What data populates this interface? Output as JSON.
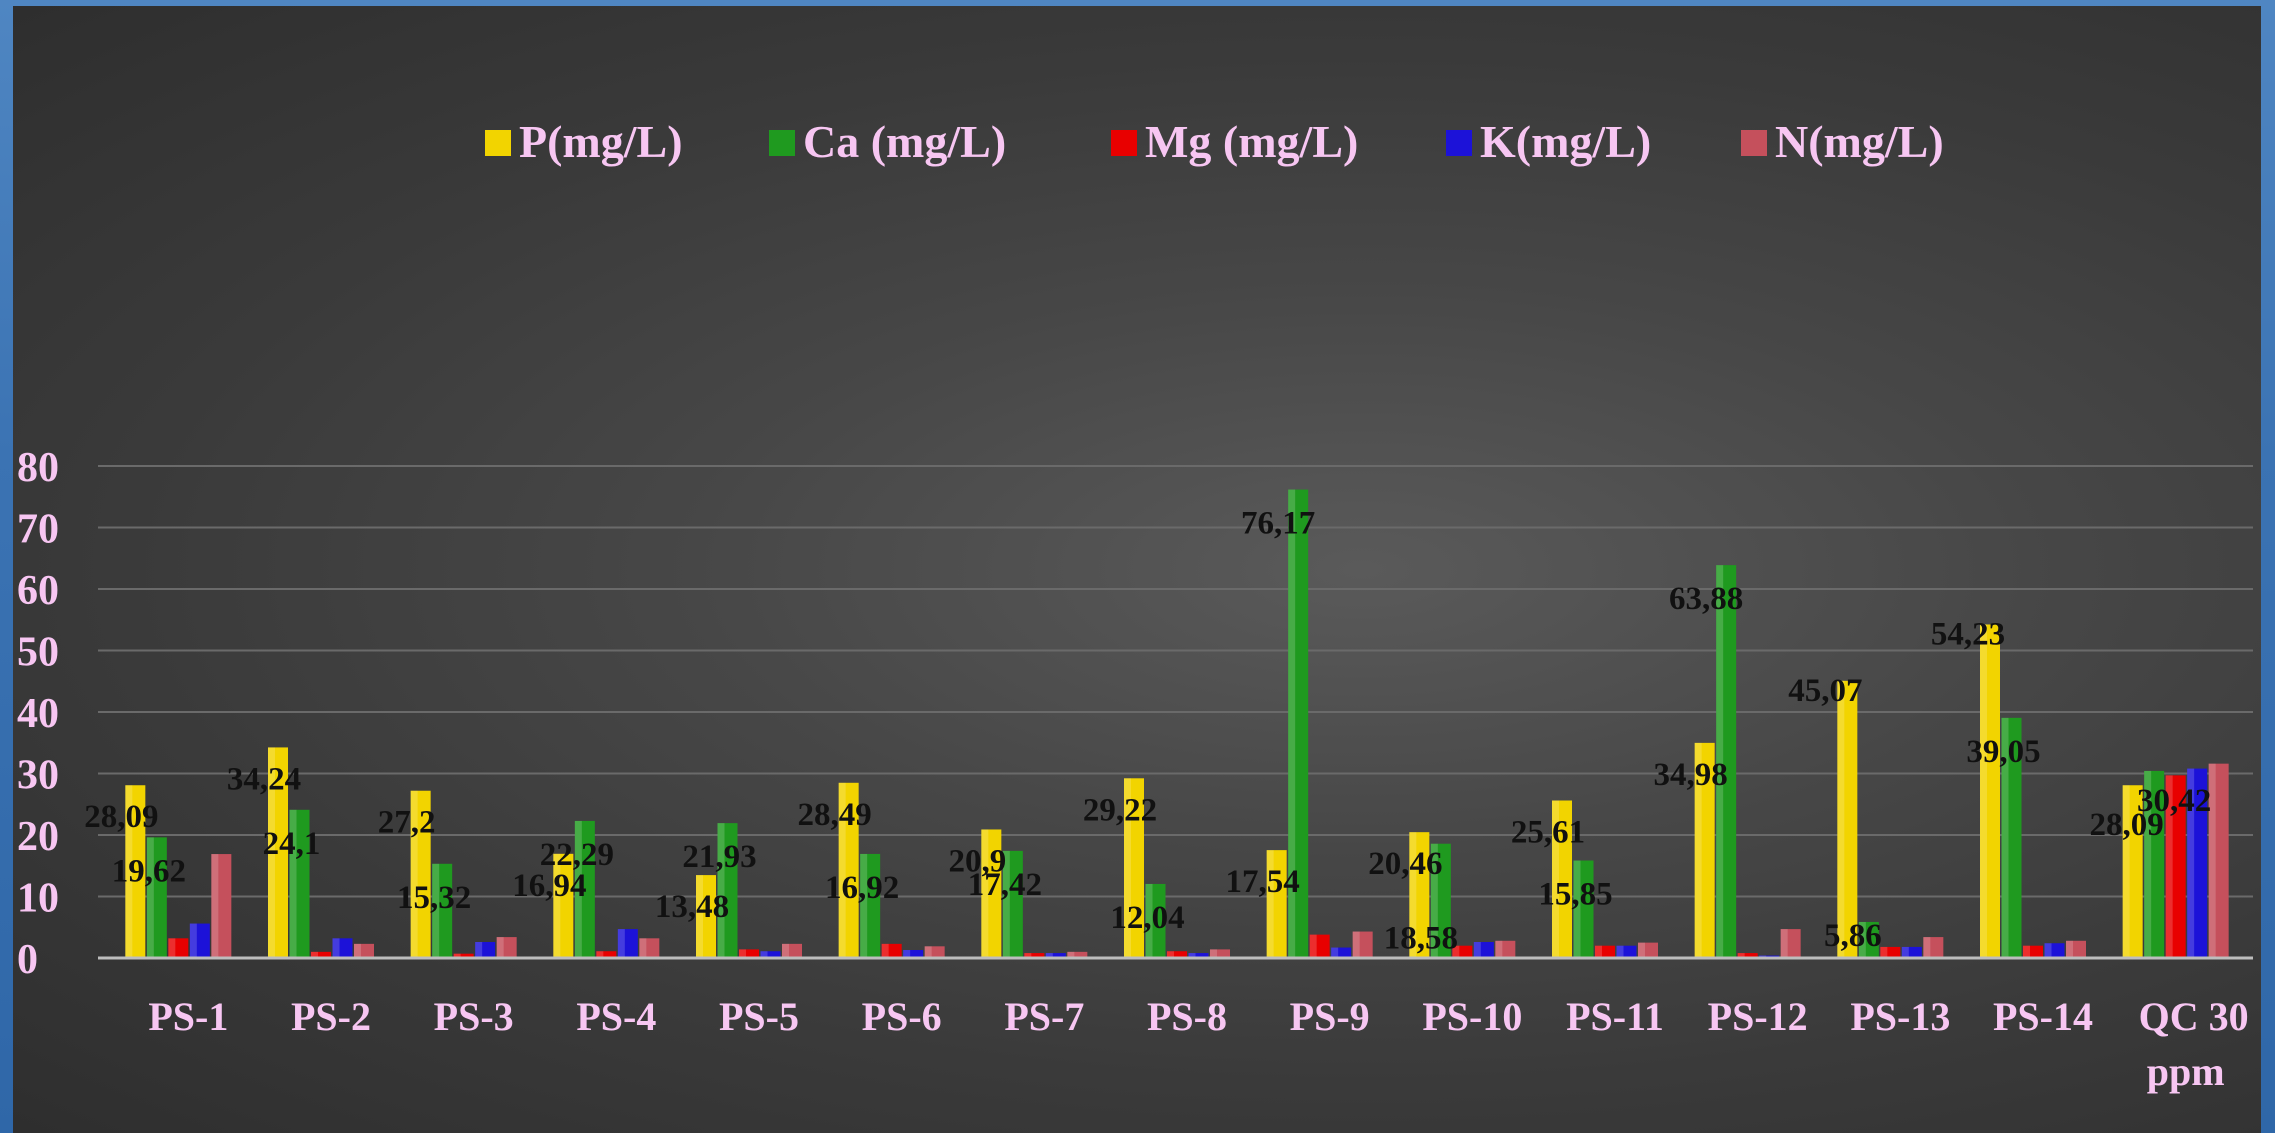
{
  "chart_data": {
    "type": "bar",
    "categories": [
      "PS-1",
      "PS-2",
      "PS-3",
      "PS-4",
      "PS-5",
      "PS-6",
      "PS-7",
      "PS-8",
      "PS-9",
      "PS-10",
      "PS-11",
      "PS-12",
      "PS-13",
      "PS-14",
      "QC 30 ppm"
    ],
    "series": [
      {
        "name": "P(mg/L)",
        "color": "#f2d400",
        "values": [
          28.09,
          34.24,
          27.2,
          16.94,
          13.48,
          28.49,
          20.9,
          29.22,
          17.54,
          20.46,
          25.61,
          34.98,
          45.07,
          54.23,
          28.09
        ]
      },
      {
        "name": "Ca (mg/L)",
        "color": "#1f9a1f",
        "values": [
          19.62,
          24.1,
          15.32,
          22.29,
          21.93,
          16.92,
          17.42,
          12.04,
          76.17,
          18.58,
          15.85,
          63.88,
          5.86,
          39.05,
          30.42
        ]
      },
      {
        "name": "Mg (mg/L)",
        "color": "#e80000",
        "values": [
          3.2,
          1.0,
          0.7,
          1.1,
          1.4,
          2.3,
          0.8,
          1.1,
          3.8,
          2.0,
          2.0,
          0.8,
          1.8,
          2.0,
          29.7
        ]
      },
      {
        "name": "K(mg/L)",
        "color": "#1c12d8",
        "values": [
          5.6,
          3.2,
          2.6,
          4.7,
          1.1,
          1.3,
          0.8,
          0.8,
          1.7,
          2.6,
          2.0,
          0.4,
          1.8,
          2.4,
          30.8
        ]
      },
      {
        "name": "N(mg/L)",
        "color": "#c5505c",
        "values": [
          16.9,
          2.3,
          3.4,
          3.2,
          2.3,
          1.9,
          1.0,
          1.4,
          4.3,
          2.8,
          2.5,
          4.7,
          3.4,
          2.8,
          31.6
        ]
      }
    ],
    "data_labels": [
      {
        "series": 0,
        "category": 0,
        "text": "28,09"
      },
      {
        "series": 1,
        "category": 0,
        "text": "19,62"
      },
      {
        "series": 0,
        "category": 1,
        "text": "34,24"
      },
      {
        "series": 1,
        "category": 1,
        "text": "24,1"
      },
      {
        "series": 0,
        "category": 2,
        "text": "27,2"
      },
      {
        "series": 1,
        "category": 2,
        "text": "15,32"
      },
      {
        "series": 0,
        "category": 3,
        "text": "16,94"
      },
      {
        "series": 1,
        "category": 3,
        "text": "22,29"
      },
      {
        "series": 0,
        "category": 4,
        "text": "13,48"
      },
      {
        "series": 1,
        "category": 4,
        "text": "21,93"
      },
      {
        "series": 0,
        "category": 5,
        "text": "28,49"
      },
      {
        "series": 1,
        "category": 5,
        "text": "16,92"
      },
      {
        "series": 0,
        "category": 6,
        "text": "20,9"
      },
      {
        "series": 1,
        "category": 6,
        "text": "17,42"
      },
      {
        "series": 0,
        "category": 7,
        "text": "29,22"
      },
      {
        "series": 1,
        "category": 7,
        "text": "12,04"
      },
      {
        "series": 0,
        "category": 8,
        "text": "17,54"
      },
      {
        "series": 1,
        "category": 8,
        "text": "76,17"
      },
      {
        "series": 0,
        "category": 9,
        "text": "20,46"
      },
      {
        "series": 1,
        "category": 9,
        "text": "18,58"
      },
      {
        "series": 0,
        "category": 10,
        "text": "25,61"
      },
      {
        "series": 1,
        "category": 10,
        "text": "15,85"
      },
      {
        "series": 0,
        "category": 11,
        "text": "34,98"
      },
      {
        "series": 1,
        "category": 11,
        "text": "63,88"
      },
      {
        "series": 0,
        "category": 12,
        "text": "45,07"
      },
      {
        "series": 1,
        "category": 12,
        "text": "5,86"
      },
      {
        "series": 0,
        "category": 13,
        "text": "54,23"
      },
      {
        "series": 1,
        "category": 13,
        "text": "39,05"
      },
      {
        "series": 0,
        "category": 14,
        "text": "28,09"
      },
      {
        "series": 1,
        "category": 14,
        "text": "30,42"
      }
    ],
    "yticks": [
      "0",
      "10",
      "20",
      "30",
      "40",
      "50",
      "60",
      "70",
      "80"
    ],
    "ylim": [
      0,
      80
    ],
    "grid": true,
    "legend_position": "top"
  }
}
